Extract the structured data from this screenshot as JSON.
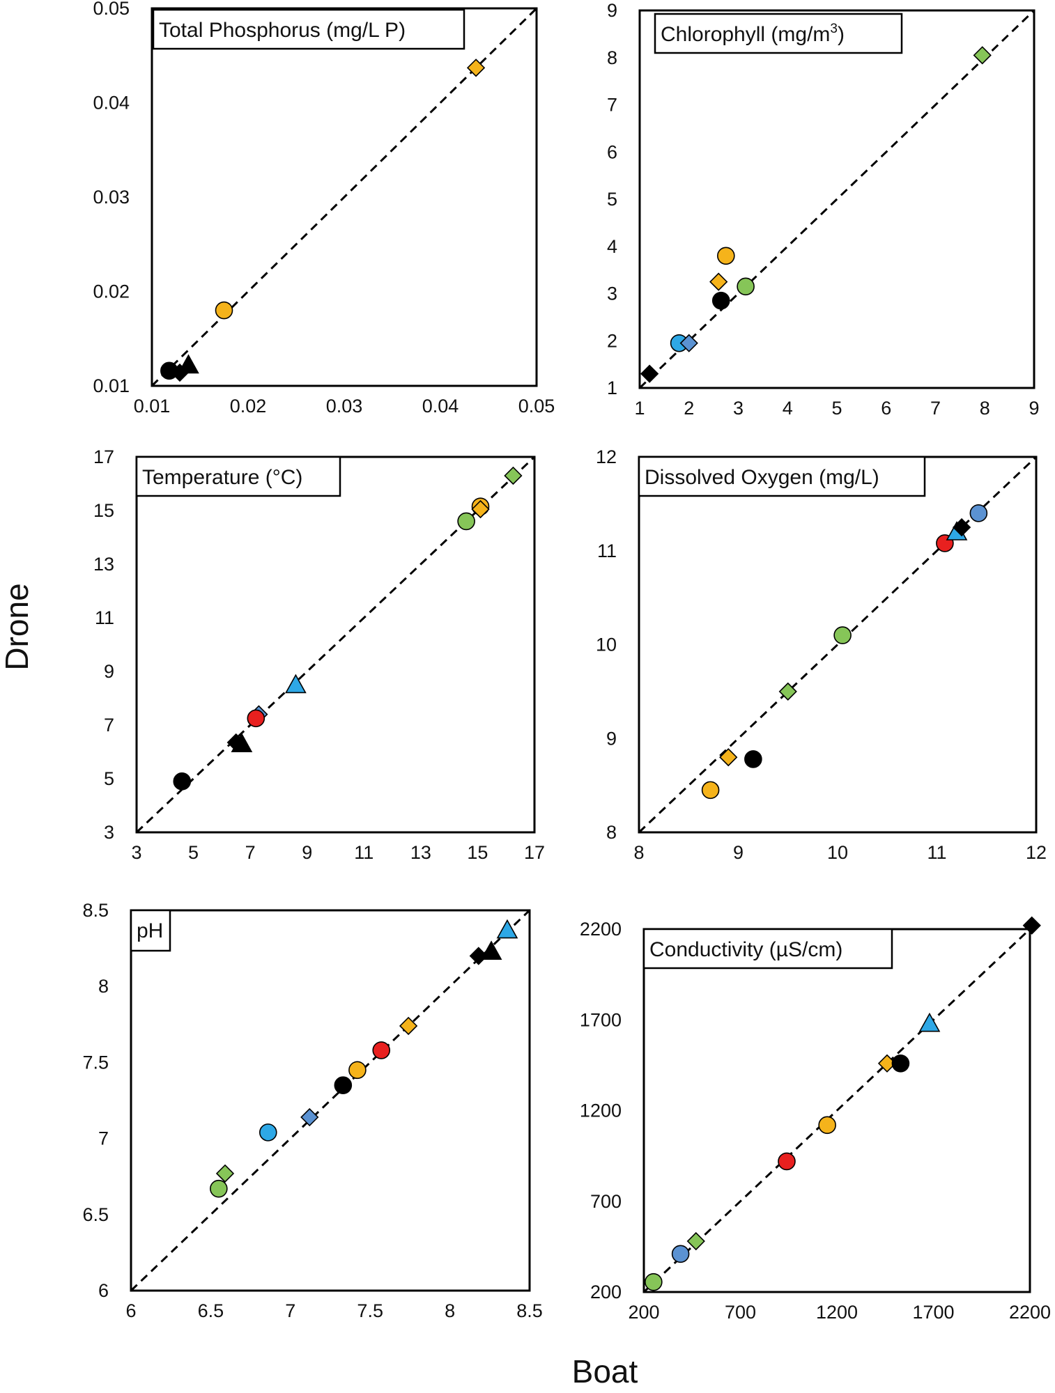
{
  "figure": {
    "ylabel": "Drone",
    "xlabel": "Boat"
  },
  "colors": {
    "black": "#000000",
    "orange": "#f5b31b",
    "green": "#86c558",
    "blue": "#2ea8e6",
    "steel": "#5b92d2",
    "red": "#e8201f"
  },
  "chart_data": [
    {
      "type": "scatter",
      "title": "Total Phosphorus (mg/L P)",
      "xlim": [
        0.01,
        0.05
      ],
      "ylim": [
        0.01,
        0.05
      ],
      "xticks": [
        "0.01",
        "0.02",
        "0.03",
        "0.04",
        "0.05"
      ],
      "yticks": [
        "0.01",
        "0.02",
        "0.03",
        "0.04",
        "0.05"
      ],
      "reference_line": "1:1",
      "points": [
        {
          "x": 0.0118,
          "y": 0.0116,
          "marker": "circle",
          "color": "black"
        },
        {
          "x": 0.0129,
          "y": 0.0114,
          "marker": "diamond",
          "color": "black"
        },
        {
          "x": 0.0138,
          "y": 0.0122,
          "marker": "triangle",
          "color": "black"
        },
        {
          "x": 0.0175,
          "y": 0.018,
          "marker": "circle",
          "color": "orange"
        },
        {
          "x": 0.0437,
          "y": 0.0437,
          "marker": "diamond",
          "color": "orange"
        }
      ]
    },
    {
      "type": "scatter",
      "title": "Chlorophyll (mg/m",
      "title_sup": "3",
      "title_end": ")",
      "xlim": [
        1,
        9
      ],
      "ylim": [
        1,
        9
      ],
      "xticks": [
        "1",
        "2",
        "3",
        "4",
        "5",
        "6",
        "7",
        "8",
        "9"
      ],
      "yticks": [
        "1",
        "2",
        "3",
        "4",
        "5",
        "6",
        "7",
        "8",
        "9"
      ],
      "reference_line": "1:1",
      "points": [
        {
          "x": 1.2,
          "y": 1.3,
          "marker": "diamond",
          "color": "black"
        },
        {
          "x": 1.8,
          "y": 1.95,
          "marker": "circle",
          "color": "blue"
        },
        {
          "x": 2.0,
          "y": 1.95,
          "marker": "diamond",
          "color": "steel"
        },
        {
          "x": 2.65,
          "y": 2.85,
          "marker": "circle",
          "color": "black"
        },
        {
          "x": 2.6,
          "y": 3.25,
          "marker": "diamond",
          "color": "orange"
        },
        {
          "x": 3.15,
          "y": 3.15,
          "marker": "circle",
          "color": "green"
        },
        {
          "x": 2.75,
          "y": 3.8,
          "marker": "circle",
          "color": "orange"
        },
        {
          "x": 7.95,
          "y": 8.05,
          "marker": "diamond",
          "color": "green"
        }
      ]
    },
    {
      "type": "scatter",
      "title": "Temperature (°C)",
      "xlim": [
        3,
        17
      ],
      "ylim": [
        3,
        17
      ],
      "xticks": [
        "3",
        "5",
        "7",
        "9",
        "11",
        "13",
        "15",
        "17"
      ],
      "yticks": [
        "3",
        "5",
        "7",
        "9",
        "11",
        "13",
        "15",
        "17"
      ],
      "reference_line": "1:1",
      "points": [
        {
          "x": 4.6,
          "y": 4.9,
          "marker": "circle",
          "color": "black"
        },
        {
          "x": 6.5,
          "y": 6.35,
          "marker": "diamond",
          "color": "black"
        },
        {
          "x": 6.7,
          "y": 6.3,
          "marker": "triangle",
          "color": "black"
        },
        {
          "x": 7.3,
          "y": 7.4,
          "marker": "diamond",
          "color": "steel"
        },
        {
          "x": 7.2,
          "y": 7.25,
          "marker": "circle",
          "color": "red"
        },
        {
          "x": 8.6,
          "y": 8.5,
          "marker": "triangle",
          "color": "blue"
        },
        {
          "x": 14.6,
          "y": 14.6,
          "marker": "circle",
          "color": "green"
        },
        {
          "x": 15.1,
          "y": 15.15,
          "marker": "circle",
          "color": "orange"
        },
        {
          "x": 15.1,
          "y": 15.05,
          "marker": "diamond",
          "color": "orange"
        },
        {
          "x": 16.25,
          "y": 16.3,
          "marker": "diamond",
          "color": "green"
        }
      ]
    },
    {
      "type": "scatter",
      "title": "Dissolved Oxygen (mg/L)",
      "xlim": [
        8,
        12
      ],
      "ylim": [
        8,
        12
      ],
      "xticks": [
        "8",
        "9",
        "10",
        "11",
        "12"
      ],
      "yticks": [
        "8",
        "9",
        "10",
        "11",
        "12"
      ],
      "reference_line": "1:1",
      "points": [
        {
          "x": 8.72,
          "y": 8.45,
          "marker": "circle",
          "color": "orange"
        },
        {
          "x": 8.9,
          "y": 8.8,
          "marker": "diamond",
          "color": "orange"
        },
        {
          "x": 9.15,
          "y": 8.78,
          "marker": "circle",
          "color": "black"
        },
        {
          "x": 9.5,
          "y": 9.5,
          "marker": "diamond",
          "color": "green"
        },
        {
          "x": 10.05,
          "y": 10.1,
          "marker": "circle",
          "color": "green"
        },
        {
          "x": 11.08,
          "y": 11.08,
          "marker": "circle",
          "color": "red"
        },
        {
          "x": 11.2,
          "y": 11.2,
          "marker": "triangle",
          "color": "blue"
        },
        {
          "x": 11.25,
          "y": 11.25,
          "marker": "diamond",
          "color": "black"
        },
        {
          "x": 11.42,
          "y": 11.4,
          "marker": "circle",
          "color": "steel"
        }
      ]
    },
    {
      "type": "scatter",
      "title": "pH",
      "xlim": [
        6,
        8.5
      ],
      "ylim": [
        6,
        8.5
      ],
      "xticks": [
        "6",
        "6.5",
        "7",
        "7.5",
        "8",
        "8.5"
      ],
      "yticks": [
        "6",
        "6.5",
        "7",
        "7.5",
        "8",
        "8.5"
      ],
      "reference_line": "1:1",
      "points": [
        {
          "x": 6.55,
          "y": 6.67,
          "marker": "circle",
          "color": "green"
        },
        {
          "x": 6.59,
          "y": 6.77,
          "marker": "diamond",
          "color": "green"
        },
        {
          "x": 6.86,
          "y": 7.04,
          "marker": "circle",
          "color": "blue"
        },
        {
          "x": 7.12,
          "y": 7.14,
          "marker": "diamond",
          "color": "steel"
        },
        {
          "x": 7.33,
          "y": 7.35,
          "marker": "circle",
          "color": "black"
        },
        {
          "x": 7.42,
          "y": 7.45,
          "marker": "circle",
          "color": "orange"
        },
        {
          "x": 7.57,
          "y": 7.58,
          "marker": "circle",
          "color": "red"
        },
        {
          "x": 7.74,
          "y": 7.74,
          "marker": "diamond",
          "color": "orange"
        },
        {
          "x": 8.18,
          "y": 8.2,
          "marker": "diamond",
          "color": "black"
        },
        {
          "x": 8.26,
          "y": 8.23,
          "marker": "triangle",
          "color": "black"
        },
        {
          "x": 8.36,
          "y": 8.37,
          "marker": "triangle",
          "color": "blue"
        }
      ]
    },
    {
      "type": "scatter",
      "title": "Conductivity (µS/cm)",
      "xlim": [
        200,
        2200
      ],
      "ylim": [
        200,
        2200
      ],
      "xticks": [
        "200",
        "700",
        "1200",
        "1700",
        "2200"
      ],
      "yticks": [
        "200",
        "700",
        "1200",
        "1700",
        "2200"
      ],
      "reference_line": "1:1",
      "points": [
        {
          "x": 250,
          "y": 255,
          "marker": "circle",
          "color": "green"
        },
        {
          "x": 390,
          "y": 410,
          "marker": "circle",
          "color": "steel"
        },
        {
          "x": 470,
          "y": 480,
          "marker": "diamond",
          "color": "green"
        },
        {
          "x": 940,
          "y": 920,
          "marker": "circle",
          "color": "red"
        },
        {
          "x": 1150,
          "y": 1120,
          "marker": "circle",
          "color": "orange"
        },
        {
          "x": 1460,
          "y": 1460,
          "marker": "diamond",
          "color": "orange"
        },
        {
          "x": 1530,
          "y": 1460,
          "marker": "circle",
          "color": "black"
        },
        {
          "x": 1680,
          "y": 1680,
          "marker": "triangle",
          "color": "blue"
        },
        {
          "x": 2210,
          "y": 2220,
          "marker": "diamond",
          "color": "black"
        }
      ]
    }
  ]
}
